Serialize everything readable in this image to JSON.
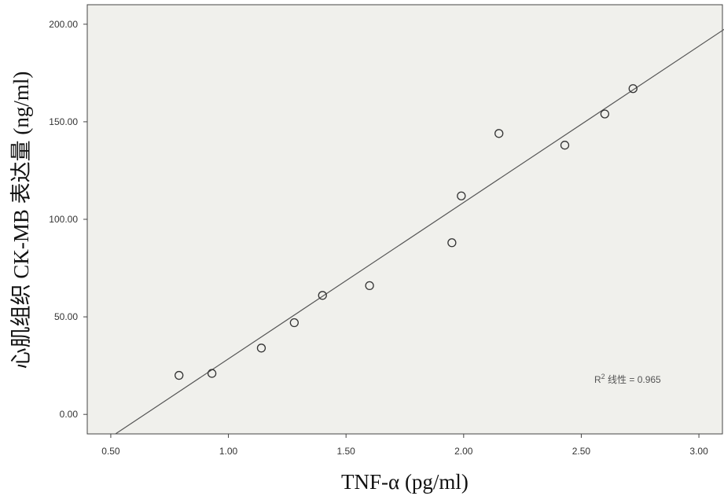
{
  "chart_data": {
    "type": "scatter",
    "title": "",
    "xlabel": "TNF-α (pg/ml)",
    "ylabel": "心肌组织 CK-MB 表达量 (ng/ml)",
    "xlim": [
      0.4,
      3.1
    ],
    "ylim": [
      -10,
      210
    ],
    "x_ticks": [
      0.5,
      1.0,
      1.5,
      2.0,
      2.5,
      3.0
    ],
    "x_tick_labels": [
      "0.50",
      "1.00",
      "1.50",
      "2.00",
      "2.50",
      "3.00"
    ],
    "y_ticks": [
      0,
      50,
      100,
      150,
      200
    ],
    "y_tick_labels": [
      "0.00",
      "50.00",
      "100.00",
      "150.00",
      "200.00"
    ],
    "grid": false,
    "background_color": "#f0f0ec",
    "points": [
      {
        "x": 0.79,
        "y": 20
      },
      {
        "x": 0.93,
        "y": 21
      },
      {
        "x": 1.14,
        "y": 34
      },
      {
        "x": 1.28,
        "y": 47
      },
      {
        "x": 1.4,
        "y": 61
      },
      {
        "x": 1.6,
        "y": 66
      },
      {
        "x": 1.95,
        "y": 88
      },
      {
        "x": 1.99,
        "y": 112
      },
      {
        "x": 2.15,
        "y": 144
      },
      {
        "x": 2.43,
        "y": 138
      },
      {
        "x": 2.6,
        "y": 154
      },
      {
        "x": 2.72,
        "y": 167
      }
    ],
    "fit_line": {
      "x": [
        0.52,
        3.14
      ],
      "y": [
        -10,
        200
      ]
    },
    "annotation": {
      "r_label": "R",
      "superscript": "2",
      "rest": " 线性 = 0.965",
      "position": "bottom-right"
    }
  }
}
